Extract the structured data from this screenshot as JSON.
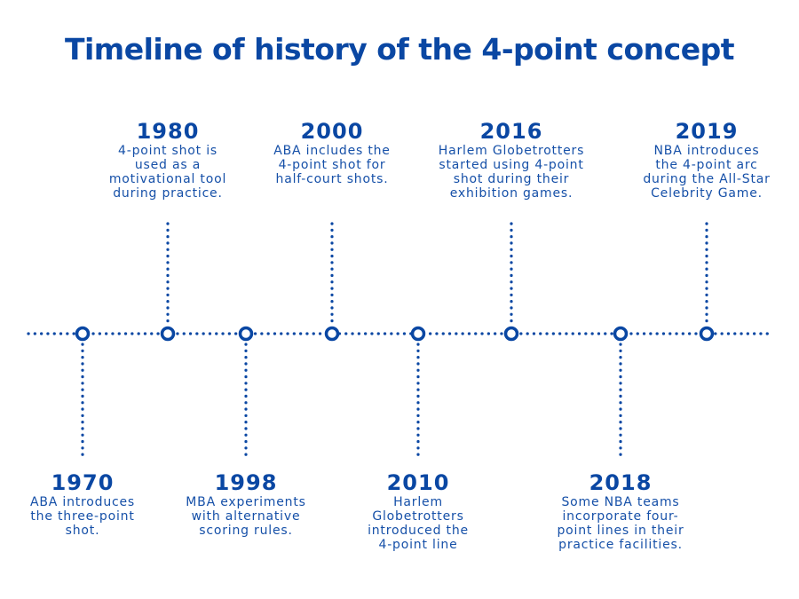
{
  "title": "Timeline of history of the 4-point concept",
  "colors": {
    "primary": "#0a47a3",
    "text": "#1650a8"
  },
  "events": [
    {
      "year": "1970",
      "description": "ABA introduces\nthe three-point\nshot.",
      "side": "below"
    },
    {
      "year": "1980",
      "description": "4-point shot is\nused as a\nmotivational tool\nduring practice.",
      "side": "above"
    },
    {
      "year": "1998",
      "description": "MBA experiments\nwith alternative\nscoring rules.",
      "side": "below"
    },
    {
      "year": "2000",
      "description": "ABA includes the\n4-point shot for\nhalf-court shots.",
      "side": "above"
    },
    {
      "year": "2010",
      "description": "Harlem\nGlobetrotters\nintroduced the\n4-point line",
      "side": "below"
    },
    {
      "year": "2016",
      "description": "Harlem Globetrotters\nstarted using 4-point\nshot during their\nexhibition games.",
      "side": "above"
    },
    {
      "year": "2018",
      "description": "Some NBA teams\nincorporate four-\npoint lines in their\npractice facilities.",
      "side": "below"
    },
    {
      "year": "2019",
      "description": "NBA introduces\nthe 4-point arc\nduring the All-Star\nCelebrity Game.",
      "side": "above"
    }
  ]
}
